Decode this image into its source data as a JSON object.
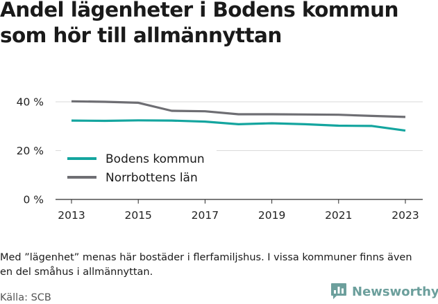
{
  "title": "Andel lägenheter i Bodens kommun som hör till allmännyttan",
  "note": "Med ”lägenhet” menas här bostäder i flerfamiljshus. I vissa kommuner finns även en del småhus i allmännyttan.",
  "source": "Källa: SCB",
  "brand": {
    "name": "Newsworthy",
    "icon": "bar-chart-speech-bubble-icon",
    "color": "#6c9f9c"
  },
  "chart_data": {
    "type": "line",
    "x": [
      2013,
      2014,
      2015,
      2016,
      2017,
      2018,
      2019,
      2020,
      2021,
      2022,
      2023
    ],
    "xticks": [
      "2013",
      "2015",
      "2017",
      "2019",
      "2021",
      "2023"
    ],
    "yticks": [
      "0 %",
      "20 %",
      "40 %"
    ],
    "ylim": [
      0,
      40
    ],
    "grid": "horizontal",
    "legend_position": "bottom-left",
    "series": [
      {
        "name": "Bodens kommun",
        "color": "#14a59f",
        "values": [
          32.3,
          32.2,
          32.4,
          32.3,
          31.9,
          30.8,
          31.2,
          30.8,
          30.2,
          30.1,
          28.2
        ]
      },
      {
        "name": "Norrbottens län",
        "color": "#6e6e73",
        "values": [
          40.2,
          40.0,
          39.6,
          36.3,
          36.1,
          34.9,
          34.9,
          34.8,
          34.7,
          34.2,
          33.8
        ]
      }
    ]
  }
}
